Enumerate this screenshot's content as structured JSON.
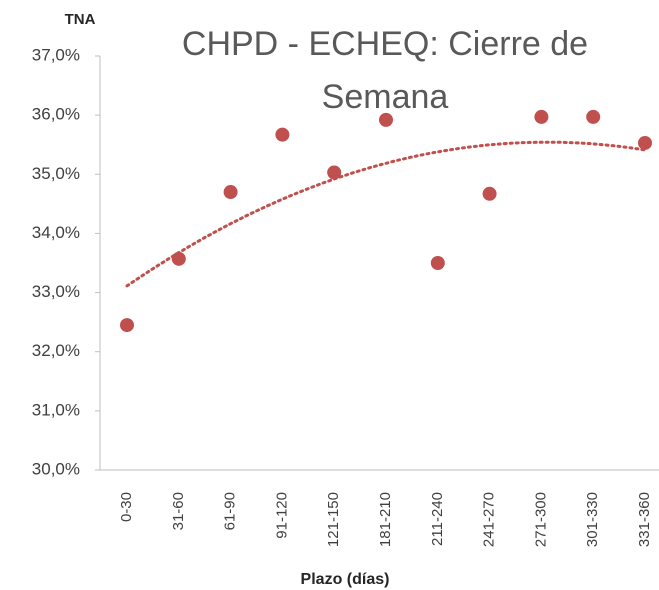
{
  "chart_data": {
    "type": "scatter",
    "title": "CHPD - ECHEQ: Cierre de Semana",
    "y_label": "TNA",
    "x_label": "Plazo (días)",
    "categories": [
      "0-30",
      "31-60",
      "61-90",
      "91-120",
      "121-150",
      "181-210",
      "211-240",
      "241-270",
      "271-300",
      "301-330",
      "331-360"
    ],
    "values": [
      32.45,
      33.57,
      34.7,
      35.67,
      35.03,
      35.92,
      33.5,
      34.67,
      35.97,
      35.97,
      35.53
    ],
    "color": "#c0504d",
    "ylim": [
      30,
      37
    ],
    "yticks": [
      {
        "value": 30,
        "label": "30,0%"
      },
      {
        "value": 31,
        "label": "31,0%"
      },
      {
        "value": 32,
        "label": "32,0%"
      },
      {
        "value": 33,
        "label": "33,0%"
      },
      {
        "value": 34,
        "label": "34,0%"
      },
      {
        "value": 35,
        "label": "35,0%"
      },
      {
        "value": 36,
        "label": "36,0%"
      },
      {
        "value": 37,
        "label": "37,0%"
      }
    ],
    "grid": false,
    "trendline": {
      "type": "polynomial",
      "order": 2,
      "color": "#c0504d"
    }
  }
}
